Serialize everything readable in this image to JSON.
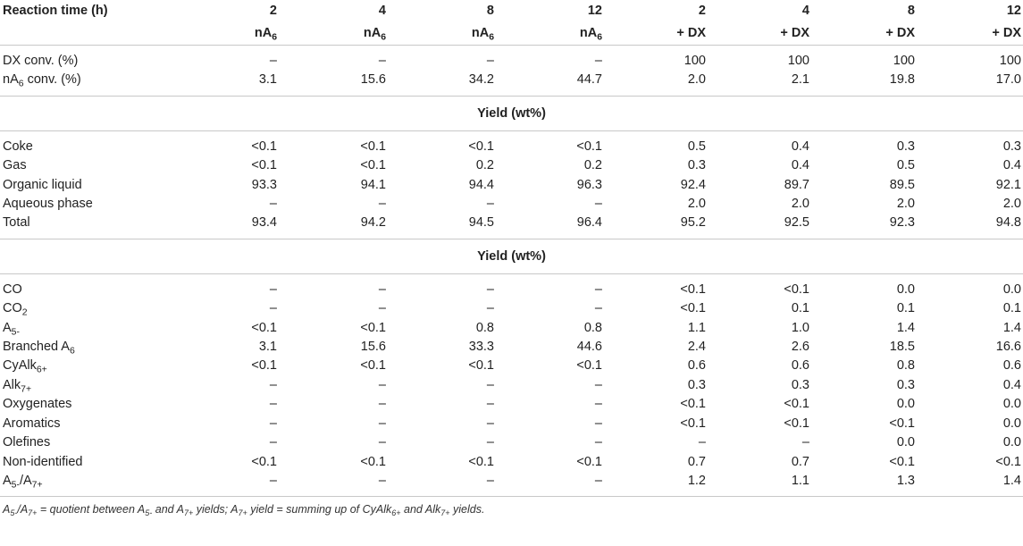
{
  "header": {
    "label": "Reaction time (h)",
    "times": [
      "2",
      "4",
      "8",
      "12",
      "2",
      "4",
      "8",
      "12"
    ],
    "feeds": [
      "nA6",
      "nA6",
      "nA6",
      "nA6",
      "+ DX",
      "+ DX",
      "+ DX",
      "+ DX"
    ]
  },
  "conversion_rows": [
    {
      "label": "DX conv. (%)",
      "values": [
        "–",
        "–",
        "–",
        "–",
        "100",
        "100",
        "100",
        "100"
      ]
    },
    {
      "label": "nA6 conv. (%)",
      "values": [
        "3.1",
        "15.6",
        "34.2",
        "44.7",
        "2.0",
        "2.1",
        "19.8",
        "17.0"
      ]
    }
  ],
  "section1": {
    "title": "Yield (wt%)",
    "rows": [
      {
        "label": "Coke",
        "values": [
          "<0.1",
          "<0.1",
          "<0.1",
          "<0.1",
          "0.5",
          "0.4",
          "0.3",
          "0.3"
        ]
      },
      {
        "label": "Gas",
        "values": [
          "<0.1",
          "<0.1",
          "0.2",
          "0.2",
          "0.3",
          "0.4",
          "0.5",
          "0.4"
        ]
      },
      {
        "label": "Organic liquid",
        "values": [
          "93.3",
          "94.1",
          "94.4",
          "96.3",
          "92.4",
          "89.7",
          "89.5",
          "92.1"
        ]
      },
      {
        "label": "Aqueous phase",
        "values": [
          "–",
          "–",
          "–",
          "–",
          "2.0",
          "2.0",
          "2.0",
          "2.0"
        ]
      },
      {
        "label": "Total",
        "values": [
          "93.4",
          "94.2",
          "94.5",
          "96.4",
          "95.2",
          "92.5",
          "92.3",
          "94.8"
        ]
      }
    ]
  },
  "section2": {
    "title": "Yield (wt%)",
    "rows": [
      {
        "label": "CO",
        "values": [
          "–",
          "–",
          "–",
          "–",
          "<0.1",
          "<0.1",
          "0.0",
          "0.0"
        ]
      },
      {
        "label": "CO2",
        "values": [
          "–",
          "–",
          "–",
          "–",
          "<0.1",
          "0.1",
          "0.1",
          "0.1"
        ]
      },
      {
        "label": "A5-",
        "values": [
          "<0.1",
          "<0.1",
          "0.8",
          "0.8",
          "1.1",
          "1.0",
          "1.4",
          "1.4"
        ]
      },
      {
        "label": "Branched A6",
        "values": [
          "3.1",
          "15.6",
          "33.3",
          "44.6",
          "2.4",
          "2.6",
          "18.5",
          "16.6"
        ]
      },
      {
        "label": "CyAlk6+",
        "values": [
          "<0.1",
          "<0.1",
          "<0.1",
          "<0.1",
          "0.6",
          "0.6",
          "0.8",
          "0.6"
        ]
      },
      {
        "label": "Alk7+",
        "values": [
          "–",
          "–",
          "–",
          "–",
          "0.3",
          "0.3",
          "0.3",
          "0.4"
        ]
      },
      {
        "label": "Oxygenates",
        "values": [
          "–",
          "–",
          "–",
          "–",
          "<0.1",
          "<0.1",
          "0.0",
          "0.0"
        ]
      },
      {
        "label": "Aromatics",
        "values": [
          "–",
          "–",
          "–",
          "–",
          "<0.1",
          "<0.1",
          "<0.1",
          "0.0"
        ]
      },
      {
        "label": "Olefines",
        "values": [
          "–",
          "–",
          "–",
          "–",
          "–",
          "–",
          "0.0",
          "0.0"
        ]
      },
      {
        "label": "Non-identified",
        "values": [
          "<0.1",
          "<0.1",
          "<0.1",
          "<0.1",
          "0.7",
          "0.7",
          "<0.1",
          "<0.1"
        ]
      },
      {
        "label": "A5-/A7+",
        "values": [
          "–",
          "–",
          "–",
          "–",
          "1.2",
          "1.1",
          "1.3",
          "1.4"
        ]
      }
    ]
  },
  "footnote": "A5-/A7+ = quotient between A5- and A7+ yields; A7+ yield = summing up of CyAlk6+ and Alk7+ yields."
}
